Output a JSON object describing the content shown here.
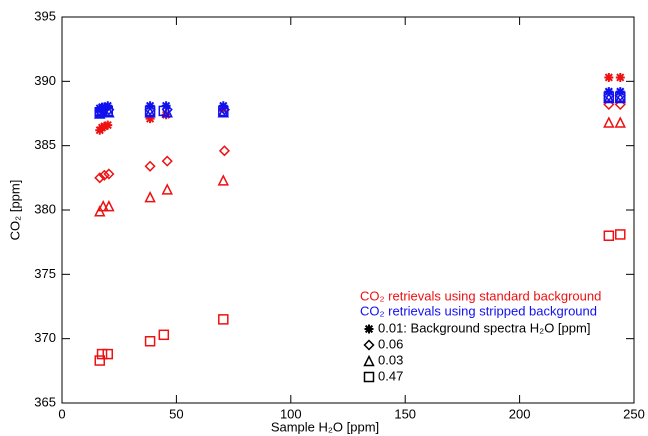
{
  "chart_data": {
    "type": "scatter",
    "xlabel": "Sample H₂O [ppm]",
    "ylabel": "CO₂ [ppm]",
    "xlim": [
      0,
      250
    ],
    "xticks": [
      0,
      50,
      100,
      150,
      200,
      250
    ],
    "ylim": [
      365,
      395
    ],
    "yticks": [
      365,
      370,
      375,
      380,
      385,
      390,
      395
    ],
    "markers": [
      {
        "label": "0.01: Background spectra H₂O [ppm]",
        "shape": "asterisk"
      },
      {
        "label": "0.06",
        "shape": "diamond"
      },
      {
        "label": "0.03",
        "shape": "triangle"
      },
      {
        "label": "0.47",
        "shape": "square"
      }
    ],
    "groups": [
      {
        "label": "CO₂ retrievals using standard background",
        "color": "#ee1111",
        "series": [
          {
            "shape": "asterisk",
            "x": [
              16.5,
              17.5,
              18.5,
              20,
              38.5,
              45.5,
              70.5,
              239,
              244
            ],
            "values": [
              386.2,
              386.4,
              386.5,
              386.6,
              387.1,
              387.4,
              387.9,
              390.3,
              390.3
            ]
          },
          {
            "shape": "diamond",
            "x": [
              16.5,
              18.5,
              20.5,
              38.5,
              46,
              71,
              239,
              244
            ],
            "values": [
              382.5,
              382.7,
              382.8,
              383.4,
              383.8,
              384.6,
              388.2,
              388.2
            ]
          },
          {
            "shape": "triangle",
            "x": [
              16.5,
              18,
              20.5,
              38.5,
              46,
              70.5,
              239,
              244
            ],
            "values": [
              379.9,
              380.3,
              380.3,
              381.0,
              381.6,
              382.3,
              386.8,
              386.8
            ]
          },
          {
            "shape": "square",
            "x": [
              16.5,
              17.5,
              20,
              38.5,
              44.5,
              70.5,
              239,
              244
            ],
            "values": [
              368.3,
              368.8,
              368.8,
              369.8,
              370.3,
              371.5,
              378.0,
              378.1
            ]
          }
        ]
      },
      {
        "label": "CO₂ retrievals using stripped background",
        "color": "#1111ee",
        "series": [
          {
            "shape": "asterisk",
            "x": [
              16.5,
              17.5,
              18.5,
              20,
              38.5,
              45.5,
              70.5,
              239,
              244
            ],
            "values": [
              387.9,
              388.0,
              388.0,
              388.1,
              388.1,
              388.1,
              388.1,
              389.2,
              389.2
            ]
          },
          {
            "shape": "diamond",
            "x": [
              16.5,
              18.5,
              20.5,
              38.5,
              46,
              71,
              239,
              244
            ],
            "values": [
              387.7,
              387.8,
              387.8,
              387.8,
              387.8,
              387.8,
              388.9,
              388.9
            ]
          },
          {
            "shape": "triangle",
            "x": [
              16.5,
              18,
              20.5,
              38.5,
              46,
              70.5,
              239,
              244
            ],
            "values": [
              387.5,
              387.6,
              387.6,
              387.6,
              387.6,
              387.6,
              388.7,
              388.7
            ]
          },
          {
            "shape": "square",
            "x": [
              16.5,
              17.5,
              20,
              38.5,
              44.5,
              70.5,
              239,
              244
            ],
            "values": [
              387.6,
              387.7,
              387.7,
              387.7,
              387.7,
              387.7,
              388.8,
              388.8
            ]
          }
        ]
      }
    ]
  }
}
